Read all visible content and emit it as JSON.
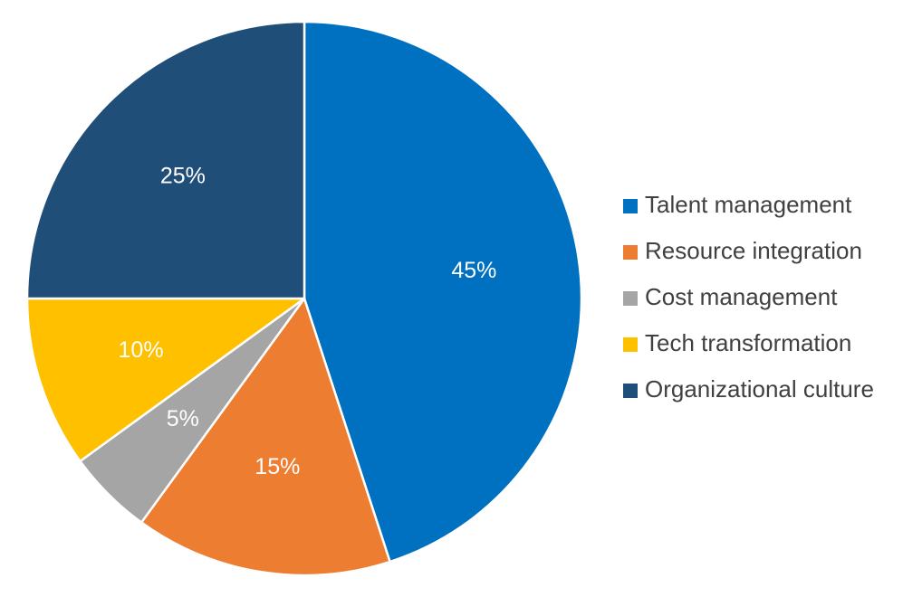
{
  "chart_data": {
    "type": "pie",
    "title": "",
    "legend_position": "right",
    "start_angle_deg": 0,
    "direction": "clockwise",
    "slices": [
      {
        "name": "Talent management",
        "value": 45,
        "label": "45%",
        "color": "#0070C0"
      },
      {
        "name": "Resource integration",
        "value": 15,
        "label": "15%",
        "color": "#ED7D31"
      },
      {
        "name": "Cost management",
        "value": 5,
        "label": "5%",
        "color": "#A5A5A5"
      },
      {
        "name": "Tech transformation",
        "value": 10,
        "label": "10%",
        "color": "#FFC000"
      },
      {
        "name": "Organizational culture",
        "value": 25,
        "label": "25%",
        "color": "#1F4E79"
      }
    ]
  }
}
